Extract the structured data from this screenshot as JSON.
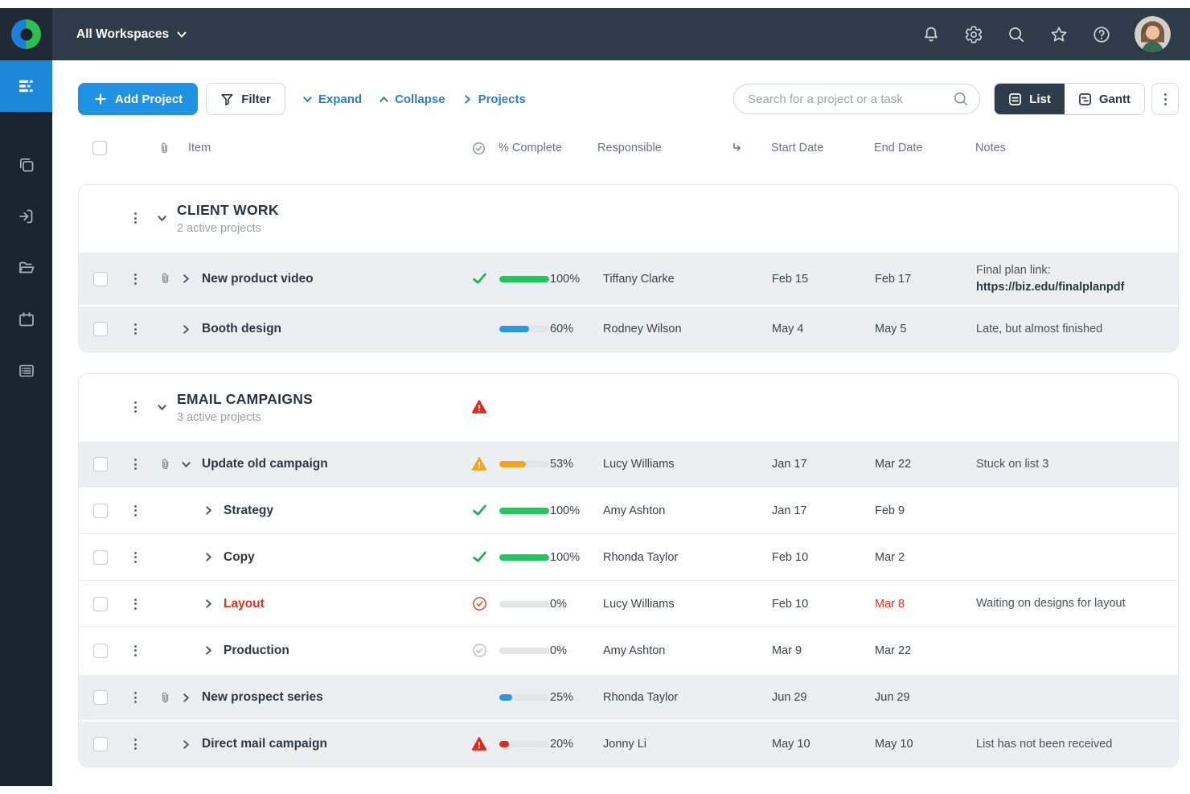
{
  "topbar": {
    "workspace_label": "All Workspaces",
    "icons": [
      "notifications-icon",
      "settings-icon",
      "search-icon",
      "favorites-icon",
      "help-icon"
    ],
    "avatar": "user-avatar"
  },
  "sidebar": {
    "items": [
      "timeline",
      "boards",
      "sign-in",
      "projects-folder",
      "calendar",
      "notes-list"
    ],
    "active_item": "timeline"
  },
  "toolbar": {
    "add_project_label": "Add Project",
    "filter_label": "Filter",
    "expand_label": "Expand",
    "collapse_label": "Collapse",
    "projects_label": "Projects"
  },
  "search": {
    "placeholder": "Search for a project or a task"
  },
  "view_toggle": {
    "list_label": "List",
    "gantt_label": "Gantt",
    "active": "List"
  },
  "table_headers": {
    "item": "Item",
    "complete": "% Complete",
    "responsible": "Responsible",
    "start": "Start Date",
    "end": "End Date",
    "notes": "Notes"
  },
  "colors": {
    "accent_blue": "#2191e4",
    "topbar_bg": "#2e3b48",
    "sidebar_bg": "#1a242f",
    "sidebar_active": "#1d87d8",
    "link_blue": "#2f7cc3",
    "progress_green": "#22c55e",
    "progress_blue": "#2b97e0",
    "progress_orange": "#f0a51f",
    "progress_red": "#e02b20",
    "alert_red": "#df321f"
  },
  "groups": [
    {
      "name": "CLIENT WORK",
      "subtitle": "2 active projects",
      "alert": false,
      "rows": [
        {
          "item": "New product video",
          "level": 0,
          "attachment": true,
          "expanded": false,
          "shaded": true,
          "status": "check-green",
          "percent": 100,
          "percent_label": "100%",
          "bar_color": "#22c55e",
          "responsible": "Tiffany Clarke",
          "start": "Feb 15",
          "end": "Feb 17",
          "notes": "Final plan link:",
          "notes_link": "https://biz.edu/finalplanpdf",
          "item_alert": false,
          "end_alert": false
        },
        {
          "item": "Booth design",
          "level": 0,
          "attachment": false,
          "expanded": false,
          "shaded": true,
          "status": "none",
          "percent": 60,
          "percent_label": "60%",
          "bar_color": "#2b97e0",
          "responsible": "Rodney Wilson",
          "start": "May 4",
          "end": "May 5",
          "notes": "Late, but almost finished",
          "notes_link": "",
          "item_alert": false,
          "end_alert": false
        }
      ]
    },
    {
      "name": "EMAIL CAMPAIGNS",
      "subtitle": "3 active projects",
      "alert": true,
      "rows": [
        {
          "item": "Update old campaign",
          "level": 0,
          "attachment": true,
          "expanded": true,
          "shaded": true,
          "status": "warn-orange",
          "percent": 53,
          "percent_label": "53%",
          "bar_color": "#f0a51f",
          "responsible": "Lucy Williams",
          "start": "Jan 17",
          "end": "Mar 22",
          "notes": "Stuck on list 3",
          "notes_link": "",
          "item_alert": false,
          "end_alert": false
        },
        {
          "item": "Strategy",
          "level": 1,
          "attachment": false,
          "expanded": false,
          "shaded": false,
          "status": "check-green",
          "percent": 100,
          "percent_label": "100%",
          "bar_color": "#22c55e",
          "responsible": "Amy Ashton",
          "start": "Jan 17",
          "end": "Feb 9",
          "notes": "",
          "notes_link": "",
          "item_alert": false,
          "end_alert": false
        },
        {
          "item": "Copy",
          "level": 1,
          "attachment": false,
          "expanded": false,
          "shaded": false,
          "status": "check-green",
          "percent": 100,
          "percent_label": "100%",
          "bar_color": "#22c55e",
          "responsible": "Rhonda Taylor",
          "start": "Feb 10",
          "end": "Mar 2",
          "notes": "",
          "notes_link": "",
          "item_alert": false,
          "end_alert": false
        },
        {
          "item": "Layout",
          "level": 1,
          "attachment": false,
          "expanded": false,
          "shaded": false,
          "status": "circle-red",
          "percent": 0,
          "percent_label": "0%",
          "bar_color": "#e02b20",
          "responsible": "Lucy Williams",
          "start": "Feb 10",
          "end": "Mar 8",
          "notes": "Waiting on designs for layout",
          "notes_link": "",
          "item_alert": true,
          "end_alert": true
        },
        {
          "item": "Production",
          "level": 1,
          "attachment": false,
          "expanded": false,
          "shaded": false,
          "status": "circle-gray",
          "percent": 0,
          "percent_label": "0%",
          "bar_color": "#b9c1c8",
          "responsible": "Amy Ashton",
          "start": "Mar 9",
          "end": "Mar 22",
          "notes": "",
          "notes_link": "",
          "item_alert": false,
          "end_alert": false
        },
        {
          "item": "New prospect series",
          "level": 0,
          "attachment": true,
          "expanded": false,
          "shaded": true,
          "status": "none",
          "percent": 25,
          "percent_label": "25%",
          "bar_color": "#2b97e0",
          "responsible": "Rhonda Taylor",
          "start": "Jun 29",
          "end": "Jun 29",
          "notes": "",
          "notes_link": "",
          "item_alert": false,
          "end_alert": false
        },
        {
          "item": "Direct mail campaign",
          "level": 0,
          "attachment": false,
          "expanded": false,
          "shaded": true,
          "status": "warn-red",
          "percent": 20,
          "percent_label": "20%",
          "bar_color": "#e02b20",
          "responsible": "Jonny Li",
          "start": "May 10",
          "end": "May 10",
          "notes": "List has not been received",
          "notes_link": "",
          "item_alert": false,
          "end_alert": false
        }
      ]
    }
  ]
}
